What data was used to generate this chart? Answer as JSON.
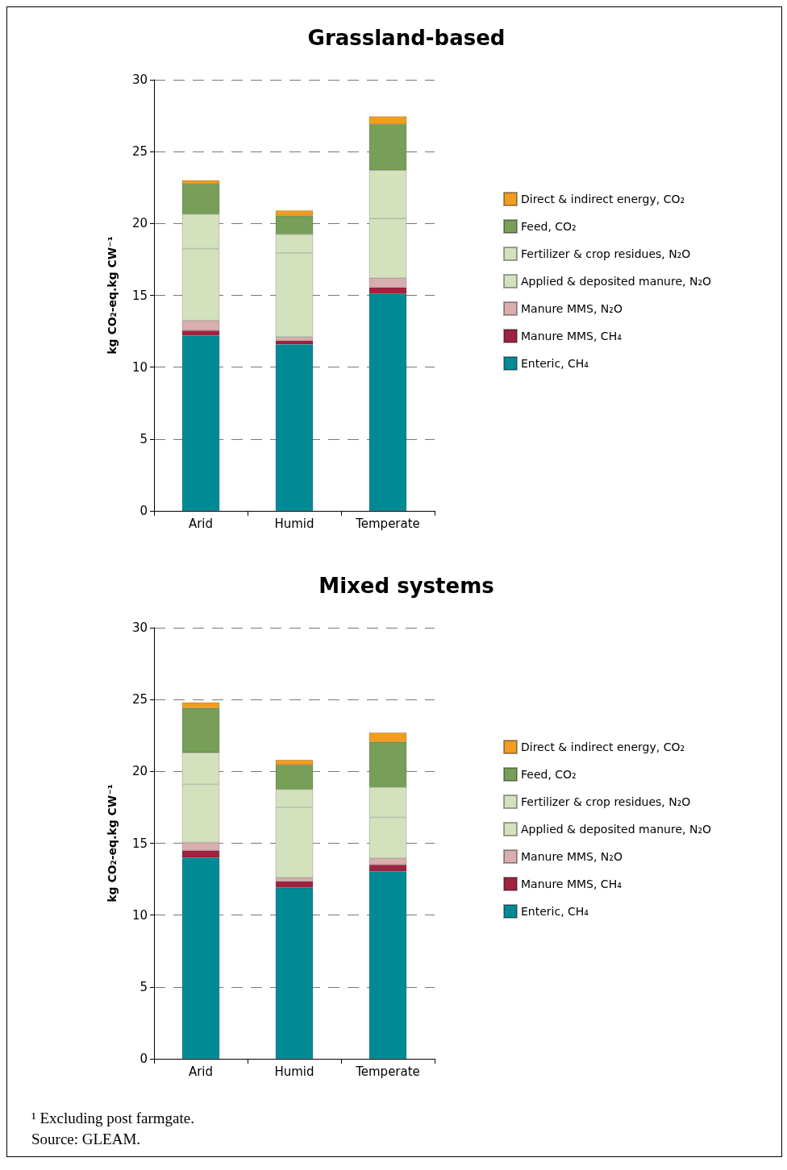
{
  "chart_data": [
    {
      "type": "bar",
      "title": "Grassland-based",
      "ylabel": "kg CO₂-eq.kg CW⁻¹",
      "categories": [
        "Arid",
        "Humid",
        "Temperate"
      ],
      "stacked": true,
      "ylim": [
        0,
        30
      ],
      "yticks": [
        0,
        5,
        10,
        15,
        20,
        25,
        30
      ],
      "grid": "y",
      "legend": "right",
      "series": [
        {
          "name": "Enteric, CH₄",
          "color": "#008a96",
          "values": [
            12.2,
            11.6,
            15.1
          ]
        },
        {
          "name": "Manure MMS, CH₄",
          "color": "#a0233f",
          "values": [
            0.35,
            0.25,
            0.45
          ]
        },
        {
          "name": "Manure MMS, N₂O",
          "color": "#d9aeae",
          "values": [
            0.7,
            0.25,
            0.65
          ]
        },
        {
          "name": "Applied & deposited manure, N₂O",
          "color": "#d3e2bc",
          "values": [
            5.0,
            5.85,
            4.15
          ]
        },
        {
          "name": "Fertilizer & crop residues, N₂O",
          "color": "#d3e2bc",
          "values": [
            2.4,
            1.3,
            3.35
          ]
        },
        {
          "name": "Feed, CO₂",
          "color": "#779f57",
          "values": [
            2.1,
            1.3,
            3.2
          ]
        },
        {
          "name": "Direct & indirect energy, CO₂",
          "color": "#f39c1f",
          "values": [
            0.25,
            0.35,
            0.55
          ]
        }
      ]
    },
    {
      "type": "bar",
      "title": "Mixed systems",
      "ylabel": "kg CO₂-eq.kg CW⁻¹",
      "categories": [
        "Arid",
        "Humid",
        "Temperate"
      ],
      "stacked": true,
      "ylim": [
        0,
        30
      ],
      "yticks": [
        0,
        5,
        10,
        15,
        20,
        25,
        30
      ],
      "grid": "y",
      "legend": "right",
      "annotations": [
        "¹ Excluding post farmgate.",
        "Source: GLEAM."
      ],
      "series": [
        {
          "name": "Enteric, CH₄",
          "color": "#008a96",
          "values": [
            14.0,
            11.9,
            13.05
          ]
        },
        {
          "name": "Manure MMS, CH₄",
          "color": "#a0233f",
          "values": [
            0.5,
            0.45,
            0.45
          ]
        },
        {
          "name": "Manure MMS, N₂O",
          "color": "#d9aeae",
          "values": [
            0.55,
            0.25,
            0.45
          ]
        },
        {
          "name": "Applied & deposited manure, N₂O",
          "color": "#d3e2bc",
          "values": [
            4.05,
            4.9,
            2.85
          ]
        },
        {
          "name": "Fertilizer & crop residues, N₂O",
          "color": "#d3e2bc",
          "values": [
            2.2,
            1.25,
            2.1
          ]
        },
        {
          "name": "Feed, CO₂",
          "color": "#779f57",
          "values": [
            3.1,
            1.7,
            3.15
          ]
        },
        {
          "name": "Direct & indirect energy, CO₂",
          "color": "#f39c1f",
          "values": [
            0.4,
            0.35,
            0.65
          ]
        }
      ]
    }
  ]
}
